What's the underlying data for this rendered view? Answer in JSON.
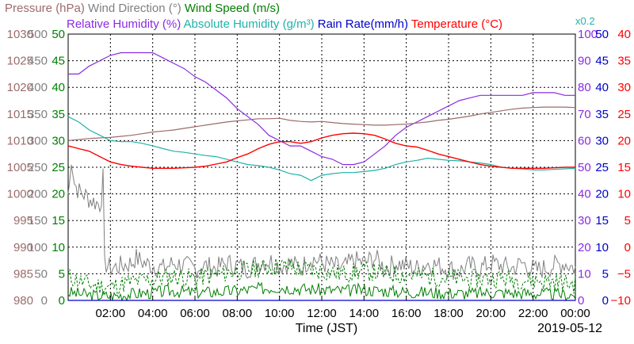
{
  "chart_data": {
    "type": "line",
    "date_label": "2019-05-12",
    "xlabel": "Time (JST)",
    "x_ticks": [
      "02:00",
      "04:00",
      "06:00",
      "08:00",
      "10:00",
      "12:00",
      "14:00",
      "16:00",
      "18:00",
      "20:00",
      "22:00",
      "00:00"
    ],
    "x_range_hours": [
      0,
      24
    ],
    "grid": true,
    "legend": {
      "line1": [
        {
          "text": "Pressure (hPa)",
          "color": "#9c6b6b"
        },
        {
          "text": "Wind Direction (°)",
          "color": "#808080"
        },
        {
          "text": "Wind Speed (m/s)",
          "color": "#008000"
        }
      ],
      "line2": [
        {
          "text": "Relative Humidity (%)",
          "color": "#8a2be2"
        },
        {
          "text": "Absolute Humidity (g/m³)",
          "color": "#20b2aa"
        },
        {
          "text": "Rain Rate(mm/h)",
          "color": "#0000cd"
        },
        {
          "text": "Temperature (°C)",
          "color": "#ff0000"
        }
      ],
      "abs_humidity_scale_note": "x0.2"
    },
    "axes": {
      "pressure": {
        "color": "#9c6b6b",
        "range": [
          980,
          1030
        ],
        "ticks": [
          "1030",
          "1025",
          "1020",
          "1015",
          "1010",
          "1005",
          "1000",
          "995",
          "990",
          "985",
          "980"
        ]
      },
      "wind_direction": {
        "color": "#808080",
        "range": [
          0,
          500
        ],
        "ticks": [
          "500",
          "450",
          "400",
          "350",
          "300",
          "250",
          "200",
          "150",
          "100",
          "50",
          "0"
        ]
      },
      "wind_speed": {
        "color": "#008000",
        "range": [
          0,
          50
        ],
        "ticks": [
          "50",
          "45",
          "40",
          "35",
          "30",
          "25",
          "20",
          "15",
          "10",
          "5",
          "0"
        ]
      },
      "relative_humidity": {
        "color": "#8a2be2",
        "range": [
          0,
          100
        ],
        "ticks": [
          "100",
          "90",
          "80",
          "70",
          "60",
          "50",
          "40",
          "30",
          "20",
          "10",
          "0"
        ]
      },
      "rain_rate": {
        "color": "#0000cd",
        "range": [
          0,
          50
        ],
        "ticks": [
          "50",
          "45",
          "40",
          "35",
          "30",
          "25",
          "20",
          "15",
          "10",
          "5",
          "0"
        ]
      },
      "temperature": {
        "color": "#ff0000",
        "range": [
          -10,
          40
        ],
        "ticks": [
          "40",
          "35",
          "30",
          "25",
          "20",
          "15",
          "10",
          "5",
          "0",
          "−5",
          "−10"
        ]
      }
    },
    "series": [
      {
        "name": "Relative Humidity (%)",
        "axis": "relative_humidity",
        "color": "#8a2be2",
        "width": 1.2,
        "x": [
          0,
          0.5,
          1,
          1.5,
          2,
          2.5,
          3,
          3.5,
          4,
          4.5,
          5,
          5.5,
          6,
          6.5,
          7,
          7.5,
          8,
          8.5,
          9,
          9.5,
          10,
          10.5,
          11,
          11.5,
          12,
          12.5,
          13,
          13.5,
          14,
          14.5,
          15,
          15.5,
          16,
          16.5,
          17,
          17.5,
          18,
          18.5,
          19,
          19.5,
          20,
          20.5,
          21,
          21.5,
          22,
          22.5,
          23,
          23.5,
          24
        ],
        "y": [
          85,
          85,
          88,
          90,
          92,
          93,
          93,
          93,
          93,
          91,
          89,
          87,
          84,
          82,
          79,
          76,
          72,
          69,
          66,
          62,
          60,
          58,
          58,
          56,
          54,
          53,
          51,
          51,
          52,
          55,
          58,
          62,
          65,
          67,
          69,
          71,
          73,
          75,
          76,
          77,
          77,
          77,
          77,
          77,
          78,
          78,
          78,
          77,
          77
        ]
      },
      {
        "name": "Absolute Humidity (g/m³)",
        "axis": "wind_speed",
        "color": "#20b2aa",
        "width": 1.2,
        "x": [
          0,
          0.5,
          1,
          1.5,
          2,
          2.5,
          3,
          3.5,
          4,
          4.5,
          5,
          5.5,
          6,
          6.5,
          7,
          7.5,
          8,
          8.5,
          9,
          9.5,
          10,
          10.5,
          11,
          11.5,
          12,
          12.5,
          13,
          13.5,
          14,
          14.5,
          15,
          15.5,
          16,
          16.5,
          17,
          17.5,
          18,
          18.5,
          19,
          19.5,
          20,
          20.5,
          21,
          21.5,
          22,
          22.5,
          23,
          23.5,
          24
        ],
        "y": [
          34.5,
          33.5,
          32,
          31,
          30,
          29.8,
          29.8,
          29.5,
          29,
          28.5,
          28,
          27.8,
          27.5,
          27.2,
          27,
          26.5,
          26,
          25.5,
          25.3,
          25,
          24.5,
          23.8,
          23.5,
          22.5,
          23.5,
          23.8,
          24,
          24,
          24.2,
          24.4,
          24.8,
          25.5,
          26,
          26.3,
          26.7,
          26.5,
          26.3,
          26.2,
          26,
          25.8,
          25.5,
          25,
          24.8,
          24.7,
          24.5,
          24.5,
          24.6,
          24.7,
          24.8
        ]
      },
      {
        "name": "Pressure (hPa)",
        "axis": "pressure",
        "color": "#9c6b6b",
        "width": 1.2,
        "x": [
          0,
          0.5,
          1,
          1.5,
          2,
          2.5,
          3,
          3.5,
          4,
          4.5,
          5,
          5.5,
          6,
          6.5,
          7,
          7.5,
          8,
          8.5,
          9,
          9.5,
          10,
          10.5,
          11,
          11.5,
          12,
          12.5,
          13,
          13.5,
          14,
          14.5,
          15,
          15.5,
          16,
          16.5,
          17,
          17.5,
          18,
          18.5,
          19,
          19.5,
          20,
          20.5,
          21,
          21.5,
          22,
          22.5,
          23,
          23.5,
          24
        ],
        "y": [
          1010,
          1010.2,
          1010.4,
          1010.5,
          1010.6,
          1010.8,
          1011,
          1011.3,
          1011.6,
          1011.8,
          1012,
          1012.3,
          1012.6,
          1012.9,
          1013.2,
          1013.5,
          1013.7,
          1013.9,
          1014.1,
          1014.1,
          1014.2,
          1013.8,
          1013.6,
          1013.5,
          1013.6,
          1013.4,
          1013.2,
          1013.1,
          1013,
          1012.9,
          1012.9,
          1013,
          1013.1,
          1013.3,
          1013.5,
          1013.8,
          1014,
          1014.3,
          1014.6,
          1015,
          1015.3,
          1015.6,
          1015.9,
          1016.1,
          1016.2,
          1016.3,
          1016.3,
          1016.3,
          1016.2
        ]
      },
      {
        "name": "Temperature (°C)",
        "axis": "temperature",
        "color": "#ff0000",
        "width": 1.4,
        "x": [
          0,
          0.5,
          1,
          1.5,
          2,
          2.5,
          3,
          3.5,
          4,
          4.5,
          5,
          5.5,
          6,
          6.5,
          7,
          7.5,
          8,
          8.5,
          9,
          9.5,
          10,
          10.5,
          11,
          11.5,
          12,
          12.5,
          13,
          13.5,
          14,
          14.5,
          15,
          15.5,
          16,
          16.5,
          17,
          17.5,
          18,
          18.5,
          19,
          19.5,
          20,
          20.5,
          21,
          21.5,
          22,
          22.5,
          23,
          23.5,
          24
        ],
        "y": [
          19,
          18.5,
          18,
          17,
          16,
          15.5,
          15.2,
          15,
          14.8,
          14.8,
          14.8,
          14.9,
          15,
          15.2,
          15.6,
          16,
          16.8,
          17.5,
          18.5,
          19.3,
          19.8,
          19.8,
          19.5,
          19.8,
          20.5,
          21,
          21.3,
          21.4,
          21.3,
          21,
          20.3,
          19.5,
          19,
          18.8,
          18.2,
          17.5,
          17,
          16.5,
          16,
          15.5,
          15.2,
          15,
          14.8,
          14.8,
          14.8,
          14.8,
          14.9,
          15,
          15
        ]
      },
      {
        "name": "Wind Direction (°)",
        "axis": "wind_direction",
        "color": "#808080",
        "width": 1.0,
        "noise": true,
        "seed": 7,
        "amp": 20,
        "x": [
          0,
          0.1,
          0.15,
          0.3,
          0.5,
          0.7,
          0.9,
          1,
          1.5,
          1.6,
          1.65,
          1.7,
          1.75,
          2,
          2.5,
          3,
          3.2,
          3.4,
          3.6,
          4,
          4.5,
          5,
          5.5,
          6,
          6.5,
          7,
          7.5,
          8,
          8.5,
          9,
          9.5,
          10,
          10.5,
          11,
          11.5,
          12,
          12.5,
          13,
          13.5,
          14,
          14.5,
          15,
          15.5,
          16,
          16.5,
          17,
          17.5,
          18,
          18.5,
          19,
          19.5,
          20,
          20.5,
          21,
          21.5,
          22,
          22.5,
          23,
          23.5,
          24
        ],
        "y": [
          200,
          230,
          270,
          220,
          205,
          200,
          195,
          190,
          180,
          200,
          230,
          60,
          70,
          60,
          65,
          70,
          80,
          75,
          70,
          65,
          60,
          70,
          65,
          60,
          65,
          60,
          70,
          65,
          60,
          70,
          75,
          65,
          70,
          60,
          80,
          70,
          65,
          60,
          75,
          70,
          80,
          60,
          70,
          65,
          60,
          70,
          65,
          60,
          55,
          65,
          60,
          70,
          65,
          60,
          70,
          55,
          60,
          65,
          70,
          60
        ]
      },
      {
        "name": "Wind Speed (m/s)",
        "axis": "wind_speed",
        "color": "#008000",
        "width": 1.0,
        "noise": true,
        "seed": 3,
        "amp": 1.2,
        "x": [
          0,
          1,
          2,
          3,
          4,
          5,
          6,
          7,
          8,
          9,
          10,
          11,
          12,
          13,
          14,
          15,
          16,
          17,
          18,
          19,
          20,
          21,
          22,
          23,
          24
        ],
        "y": [
          1.5,
          1.0,
          0.8,
          1.2,
          1.5,
          1.8,
          1.5,
          1.6,
          1.8,
          2.2,
          2.5,
          2.2,
          2.0,
          1.8,
          2.0,
          1.8,
          1.6,
          1.5,
          1.4,
          1.3,
          1.5,
          1.4,
          1.3,
          1.2,
          1.0
        ]
      },
      {
        "name": "Wind Speed gust (m/s)",
        "axis": "wind_speed",
        "color": "#008000",
        "width": 1.0,
        "dash": "3,2",
        "noise": true,
        "seed": 11,
        "amp": 1.8,
        "x": [
          0,
          1,
          2,
          3,
          4,
          5,
          6,
          7,
          8,
          9,
          10,
          11,
          12,
          13,
          14,
          15,
          16,
          17,
          18,
          19,
          20,
          21,
          22,
          23,
          24
        ],
        "y": [
          4.5,
          3.0,
          2.5,
          3.5,
          4.0,
          4.5,
          4.2,
          4.8,
          5.5,
          6.0,
          6.5,
          6.0,
          5.5,
          5.0,
          5.5,
          5.0,
          4.8,
          4.5,
          4.2,
          4.0,
          4.2,
          4.0,
          3.8,
          3.5,
          3.0
        ]
      },
      {
        "name": "Rain Rate(mm/h)",
        "axis": "rain_rate",
        "color": "#0000cd",
        "width": 1.2,
        "x": [
          0,
          24
        ],
        "y": [
          0,
          0
        ]
      }
    ]
  }
}
